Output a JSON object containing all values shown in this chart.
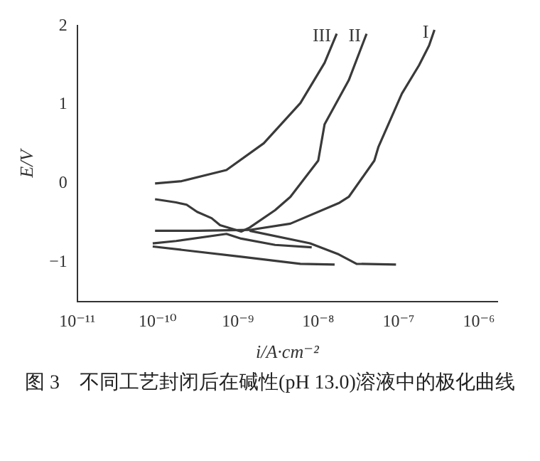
{
  "chart_data": {
    "type": "line",
    "xlabel": "i/A·cm⁻²",
    "ylabel": "E/V",
    "log": "x",
    "grid": false,
    "legend": false,
    "marker": "none",
    "line_style": "solid",
    "xlim": [
      1e-11,
      1.7e-06
    ],
    "xticks": [
      {
        "value": 1e-11,
        "label": "10⁻¹¹"
      },
      {
        "value": 1e-10,
        "label": "10⁻¹⁰"
      },
      {
        "value": 1e-09,
        "label": "10⁻⁹"
      },
      {
        "value": 1e-08,
        "label": "10⁻⁸"
      },
      {
        "value": 1e-07,
        "label": "10⁻⁷"
      },
      {
        "value": 1e-06,
        "label": "10⁻⁶"
      }
    ],
    "ylim": [
      -1.5,
      2
    ],
    "yticks": [
      -1,
      0,
      1,
      2
    ],
    "series": [
      {
        "name": "I",
        "color": "#3a3a3a",
        "x": [
          2.8e-07,
          2.4e-07,
          1.8e-07,
          1.1e-07,
          5.6e-08,
          5e-08,
          2.4e-08,
          1.8e-08,
          4.5e-09,
          1.4e-09,
          3.2e-10,
          9.3e-11
        ],
        "values": [
          1.95,
          1.75,
          1.5,
          1.14,
          0.46,
          0.29,
          -0.17,
          -0.25,
          -0.51,
          -0.59,
          -0.6,
          -0.6
        ]
      },
      {
        "color": "#3a3a3a",
        "x": [
          1.4e-09,
          7.9e-09,
          1.8e-08,
          3e-08,
          9.3e-08
        ],
        "values": [
          -0.6,
          -0.76,
          -0.9,
          -1.02,
          -1.03
        ]
      },
      {
        "name": "II",
        "color": "#3a3a3a",
        "x": [
          4e-08,
          2.4e-08,
          1.2e-08,
          1e-08,
          4.5e-09,
          2.9e-09,
          1.4e-09,
          1.1e-09,
          6e-10,
          4.7e-10,
          3.1e-10,
          2.3e-10,
          1.7e-10,
          9.3e-11
        ],
        "values": [
          1.9,
          1.31,
          0.75,
          0.29,
          -0.17,
          -0.34,
          -0.56,
          -0.61,
          -0.53,
          -0.44,
          -0.36,
          -0.27,
          -0.24,
          -0.2
        ]
      },
      {
        "color": "#3a3a3a",
        "x": [
          8.7e-11,
          1.7e-10,
          7.2e-10,
          1.1e-09,
          2.9e-09,
          8.3e-09
        ],
        "values": [
          -0.76,
          -0.73,
          -0.64,
          -0.7,
          -0.78,
          -0.81
        ]
      },
      {
        "name": "III",
        "color": "#3a3a3a",
        "x": [
          1.7e-08,
          1.2e-08,
          6e-09,
          2.1e-09,
          7.2e-10,
          2e-10,
          9.3e-11
        ],
        "values": [
          1.9,
          1.53,
          1.02,
          0.51,
          0.17,
          0.03,
          0
        ]
      },
      {
        "color": "#3a3a3a",
        "x": [
          8.7e-11,
          1.1e-09,
          6e-09,
          1.6e-08
        ],
        "values": [
          -0.8,
          -0.93,
          -1.02,
          -1.03
        ]
      }
    ],
    "annotations": [
      "图 3　不同工艺封闭后在碱性(pH 13.0)溶液中的极化曲线"
    ]
  }
}
